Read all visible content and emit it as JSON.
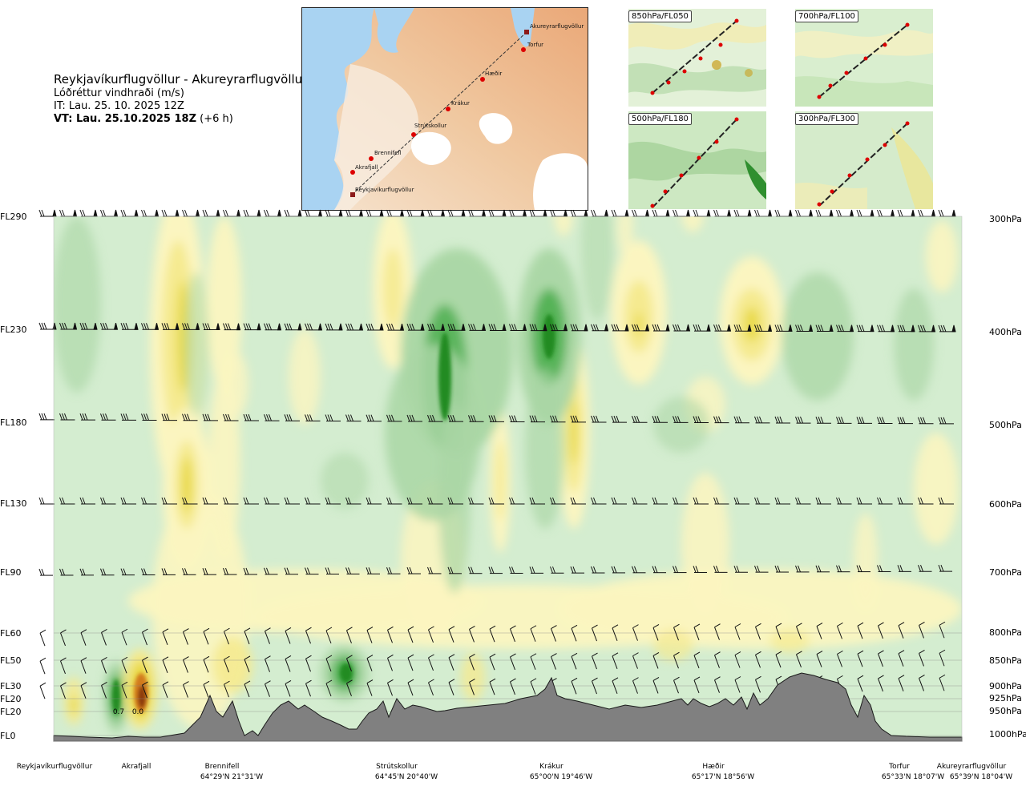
{
  "header": {
    "route": "Reykjavíkurflugvöllur - Akureyrarflugvöllur",
    "variable": "Lóðréttur vindhraði (m/s)",
    "issue_time": "IT: Lau. 25. 10. 2025 12Z",
    "valid_prefix": "VT: Lau. 25.10.2025 18Z",
    "valid_suffix": " (+6 h)"
  },
  "map": {
    "waypoints": [
      "Akureyrarflugvöllur",
      "Torfur",
      "Hæðir",
      "Krákur",
      "Strútskollur",
      "Brennifell",
      "Akrafjall",
      "Reykjavíkurflugvöllur"
    ]
  },
  "thumbnails": [
    "850hPa/FL050",
    "700hPa/FL100",
    "500hPa/FL180",
    "300hPa/FL300"
  ],
  "chart_data": {
    "type": "heatmap",
    "title": "Lóðréttur vindhraði (m/s)",
    "left_axis": [
      "FL290",
      "FL230",
      "FL180",
      "FL130",
      "FL90",
      "FL60",
      "FL50",
      "FL30",
      "FL20",
      "FL20",
      "FL0"
    ],
    "right_axis": [
      "300hPa",
      "400hPa",
      "500hPa",
      "600hPa",
      "700hPa",
      "800hPa",
      "850hPa",
      "900hPa",
      "925hPa",
      "950hPa",
      "1000hPa"
    ],
    "locations": [
      {
        "name": "Reykjavíkurflugvöllur",
        "coord": ""
      },
      {
        "name": "Akrafjall",
        "coord": ""
      },
      {
        "name": "Brennifell",
        "coord": "64°29'N 21°31'W"
      },
      {
        "name": "Strútskollur",
        "coord": "64°45'N 20°40'W"
      },
      {
        "name": "Krákur",
        "coord": "65°00'N 19°46'W"
      },
      {
        "name": "Hæðir",
        "coord": "65°17'N 18°56'W"
      },
      {
        "name": "Torfur",
        "coord": "65°33'N 18°07'W"
      },
      {
        "name": "Akureyrarflugvöllur",
        "coord": "65°39'N 18°04'W"
      }
    ],
    "annotations": [
      "0.7",
      "0.0"
    ],
    "colors": {
      "strong_down": "#228b22",
      "mod_down": "#4caf50",
      "weak_down": "#a9d6a4",
      "near_zero_down": "#d4edd0",
      "near_zero_up": "#fbf5c0",
      "weak_up": "#f5ea90",
      "mod_up": "#e8d840",
      "strong_up": "#d27a1a",
      "very_strong_up": "#8b3a0e",
      "terrain": "#808080"
    }
  }
}
